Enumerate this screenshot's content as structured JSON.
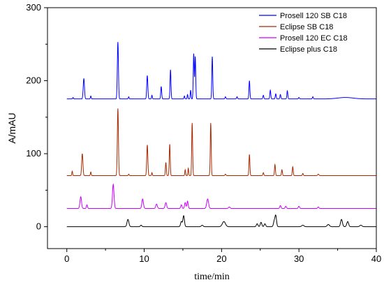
{
  "chart_data": {
    "type": "line",
    "xlabel": "time/min",
    "ylabel": "A/mAU",
    "xlim": [
      -2.5,
      40
    ],
    "ylim": [
      -30,
      300
    ],
    "x_ticks": [
      0,
      10,
      20,
      30,
      40
    ],
    "x_tick_labels": [
      "0",
      "10",
      "20",
      "30",
      "40"
    ],
    "y_ticks": [
      0,
      100,
      200,
      300
    ],
    "y_tick_labels": [
      "0",
      "100",
      "200",
      "300"
    ],
    "grid": false,
    "legend_position": "top-right",
    "series": [
      {
        "name": "Prosell 120 SB C18",
        "color": "#0000ff",
        "baseline": 175,
        "peaks": [
          [
            0.8,
            2,
            0.05
          ],
          [
            2.2,
            28,
            0.08
          ],
          [
            3.1,
            4,
            0.05
          ],
          [
            6.6,
            78,
            0.07
          ],
          [
            8.0,
            3,
            0.05
          ],
          [
            10.4,
            32,
            0.07
          ],
          [
            11.0,
            5,
            0.05
          ],
          [
            12.2,
            17,
            0.06
          ],
          [
            13.4,
            40,
            0.06
          ],
          [
            15.2,
            4,
            0.05
          ],
          [
            15.6,
            6,
            0.05
          ],
          [
            16.0,
            12,
            0.05
          ],
          [
            16.4,
            62,
            0.06
          ],
          [
            16.6,
            58,
            0.06
          ],
          [
            18.8,
            58,
            0.06
          ],
          [
            20.5,
            3,
            0.06
          ],
          [
            22.0,
            3,
            0.06
          ],
          [
            23.6,
            25,
            0.06
          ],
          [
            25.4,
            5,
            0.06
          ],
          [
            26.3,
            12,
            0.06
          ],
          [
            27.0,
            7,
            0.06
          ],
          [
            27.6,
            6,
            0.06
          ],
          [
            28.5,
            11,
            0.06
          ],
          [
            30.0,
            2,
            0.06
          ],
          [
            31.8,
            3,
            0.06
          ],
          [
            36.0,
            2,
            1.0
          ]
        ]
      },
      {
        "name": "Eclipse SB C18",
        "color": "#a52a00",
        "baseline": 70,
        "peaks": [
          [
            0.7,
            6,
            0.05
          ],
          [
            2.0,
            30,
            0.08
          ],
          [
            3.1,
            5,
            0.05
          ],
          [
            6.6,
            92,
            0.07
          ],
          [
            8.0,
            2,
            0.05
          ],
          [
            10.4,
            42,
            0.07
          ],
          [
            11.0,
            4,
            0.05
          ],
          [
            12.8,
            18,
            0.06
          ],
          [
            13.3,
            43,
            0.06
          ],
          [
            15.3,
            8,
            0.05
          ],
          [
            15.7,
            10,
            0.05
          ],
          [
            16.2,
            72,
            0.06
          ],
          [
            18.6,
            72,
            0.06
          ],
          [
            20.5,
            2,
            0.06
          ],
          [
            23.6,
            29,
            0.06
          ],
          [
            25.4,
            4,
            0.06
          ],
          [
            26.9,
            15,
            0.06
          ],
          [
            27.8,
            8,
            0.06
          ],
          [
            29.2,
            12,
            0.06
          ],
          [
            30.5,
            3,
            0.06
          ],
          [
            32.5,
            2,
            0.08
          ]
        ]
      },
      {
        "name": "Prosell 120 EC C18",
        "color": "#cc00ff",
        "baseline": 25,
        "peaks": [
          [
            1.8,
            16,
            0.1
          ],
          [
            2.6,
            5,
            0.07
          ],
          [
            6.0,
            33,
            0.1
          ],
          [
            9.8,
            13,
            0.1
          ],
          [
            11.6,
            6,
            0.1
          ],
          [
            12.8,
            8,
            0.1
          ],
          [
            14.8,
            5,
            0.08
          ],
          [
            15.3,
            8,
            0.08
          ],
          [
            15.6,
            10,
            0.08
          ],
          [
            18.2,
            13,
            0.12
          ],
          [
            21.0,
            2,
            0.1
          ],
          [
            27.6,
            4,
            0.08
          ],
          [
            28.3,
            3,
            0.08
          ],
          [
            30.0,
            3,
            0.08
          ],
          [
            32.5,
            2,
            0.08
          ]
        ]
      },
      {
        "name": "Eclipse plus C18",
        "color": "#000000",
        "baseline": 0,
        "peaks": [
          [
            7.9,
            10,
            0.12
          ],
          [
            9.6,
            2,
            0.1
          ],
          [
            14.8,
            7,
            0.1
          ],
          [
            15.1,
            15,
            0.1
          ],
          [
            17.5,
            2,
            0.12
          ],
          [
            20.3,
            7,
            0.2
          ],
          [
            24.6,
            4,
            0.1
          ],
          [
            25.1,
            6,
            0.1
          ],
          [
            25.6,
            4,
            0.1
          ],
          [
            26.8,
            7,
            0.1
          ],
          [
            27.0,
            15,
            0.1
          ],
          [
            30.5,
            2,
            0.15
          ],
          [
            33.8,
            3,
            0.15
          ],
          [
            35.5,
            10,
            0.12
          ],
          [
            36.3,
            7,
            0.12
          ],
          [
            38.0,
            2,
            0.15
          ]
        ]
      }
    ]
  }
}
